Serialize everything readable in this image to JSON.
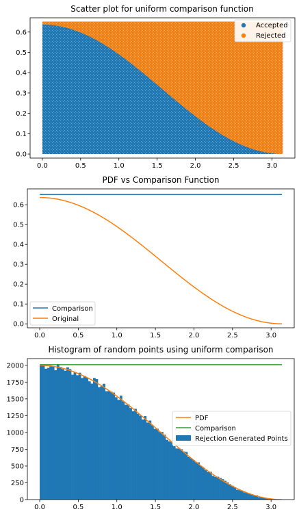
{
  "chart_data": [
    {
      "type": "scatter",
      "title": "Scatter plot for uniform comparison function",
      "xlabel": "",
      "ylabel": "",
      "xlim": [
        -0.16,
        3.3
      ],
      "ylim": [
        -0.02,
        0.67
      ],
      "xticks": [
        "0.0",
        "0.5",
        "1.0",
        "1.5",
        "2.0",
        "2.5",
        "3.0"
      ],
      "yticks": [
        "0.0",
        "0.1",
        "0.2",
        "0.3",
        "0.4",
        "0.5",
        "0.6"
      ],
      "x_range": [
        0,
        3.14159
      ],
      "y_range": [
        0,
        0.6515
      ],
      "boundary": "0.6366 * cos(x/2)^2",
      "legend_position": "top-right",
      "series": [
        {
          "name": "Accepted",
          "color": "#1f77b4",
          "region": "below boundary"
        },
        {
          "name": "Rejected",
          "color": "#ff7f0e",
          "region": "above boundary"
        }
      ]
    },
    {
      "type": "line",
      "title": "PDF vs Comparison Function",
      "xlabel": "",
      "ylabel": "",
      "xlim": [
        -0.16,
        3.3
      ],
      "ylim": [
        -0.02,
        0.68
      ],
      "xticks": [
        "0.0",
        "0.5",
        "1.0",
        "1.5",
        "2.0",
        "2.5",
        "3.0"
      ],
      "yticks": [
        "0.0",
        "0.1",
        "0.2",
        "0.3",
        "0.4",
        "0.5",
        "0.6"
      ],
      "legend_position": "lower-left",
      "series": [
        {
          "name": "Comparison",
          "color": "#1f77b4",
          "x": [
            0,
            3.14159
          ],
          "y": [
            0.6515,
            0.6515
          ]
        },
        {
          "name": "Original",
          "color": "#ff7f0e",
          "x": [
            0,
            0.25,
            0.5,
            0.75,
            1.0,
            1.25,
            1.5,
            1.75,
            2.0,
            2.25,
            2.5,
            2.75,
            3.0,
            3.14159
          ],
          "y": [
            0.6366,
            0.6267,
            0.5974,
            0.5505,
            0.4889,
            0.4163,
            0.337,
            0.2555,
            0.1766,
            0.1049,
            0.045,
            0.0096,
            0.0032,
            0.0
          ]
        }
      ]
    },
    {
      "type": "bar",
      "title": "Histogram of random points using uniform comparison",
      "xlabel": "",
      "ylabel": "",
      "xlim": [
        -0.16,
        3.3
      ],
      "ylim": [
        0,
        2100
      ],
      "xticks": [
        "0.0",
        "0.5",
        "1.0",
        "1.5",
        "2.0",
        "2.5",
        "3.0"
      ],
      "yticks": [
        "0",
        "250",
        "500",
        "750",
        "1000",
        "1250",
        "1500",
        "1750",
        "2000"
      ],
      "legend_position": "center-right",
      "bins": 100,
      "bin_range": [
        0,
        3.14159
      ],
      "pdf_peak": 2000,
      "comparison_level": 2010,
      "series": [
        {
          "name": "PDF",
          "color": "#ff7f0e",
          "kind": "line"
        },
        {
          "name": "Comparison",
          "color": "#2ca02c",
          "kind": "line"
        },
        {
          "name": "Rejection Generated Points",
          "color": "#1f77b4",
          "kind": "bar"
        }
      ]
    }
  ]
}
